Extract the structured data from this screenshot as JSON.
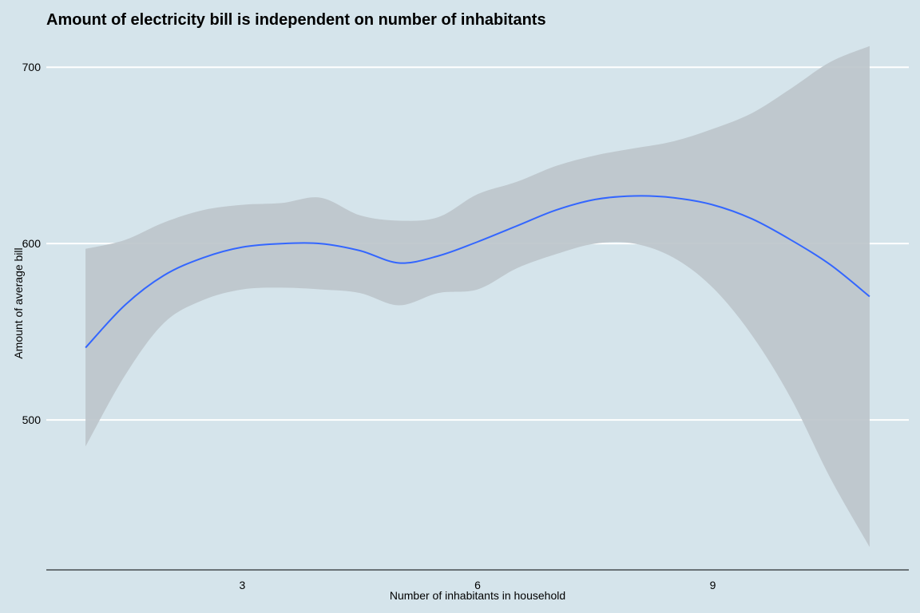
{
  "chart_data": {
    "type": "line",
    "title": "Amount of electricity bill is independent on number of inhabitants",
    "xlabel": "Number of inhabitants in household",
    "ylabel": "Amount of average bill",
    "xlim": [
      0.5,
      11.5
    ],
    "ylim": [
      415,
      720
    ],
    "x_ticks": [
      3,
      6,
      9
    ],
    "y_ticks": [
      500,
      600,
      700
    ],
    "grid": "horizontal",
    "colors": {
      "line": "#3366ff",
      "band": "#bdc5cb",
      "background": "#d5e4eb",
      "grid": "#ffffff",
      "axis": "#000000"
    },
    "series": [
      {
        "x": [
          1,
          1.5,
          2,
          2.5,
          3,
          3.5,
          4,
          4.5,
          5,
          5.5,
          6,
          6.5,
          7,
          7.5,
          8,
          8.5,
          9,
          9.5,
          10,
          10.5,
          11
        ],
        "values": [
          541,
          565,
          582,
          592,
          598,
          600,
          600,
          596,
          589,
          593,
          601,
          610,
          619,
          625,
          627,
          626,
          622,
          614,
          602,
          588,
          570
        ],
        "lower": [
          485,
          525,
          555,
          568,
          574,
          575,
          574,
          572,
          565,
          572,
          574,
          586,
          594,
          600,
          600,
          592,
          575,
          548,
          512,
          467,
          428
        ],
        "upper": [
          597,
          602,
          612,
          619,
          622,
          623,
          626,
          616,
          613,
          615,
          628,
          635,
          644,
          650,
          654,
          658,
          665,
          674,
          688,
          703,
          712
        ]
      }
    ]
  }
}
